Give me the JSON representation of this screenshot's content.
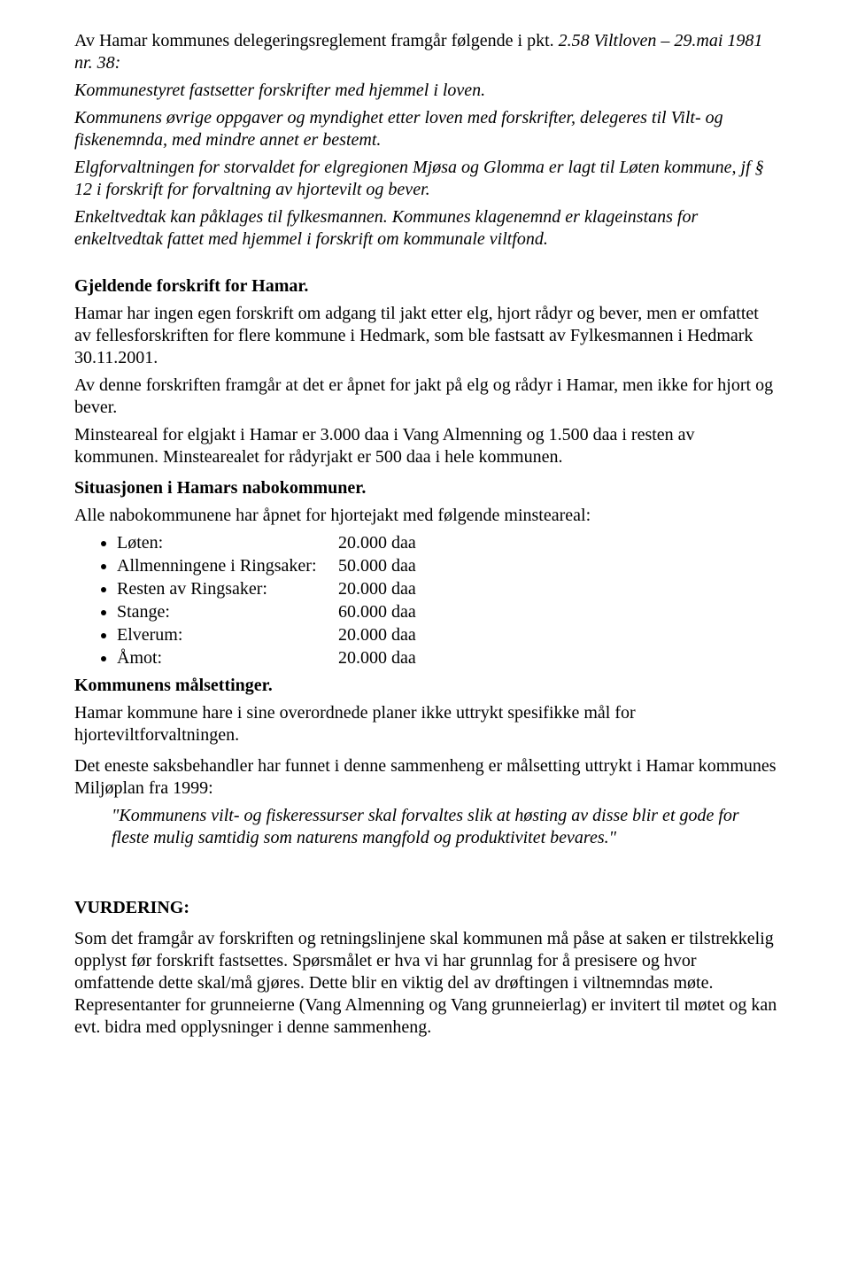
{
  "intro": {
    "p1_a": "Av Hamar kommunes delegeringsreglement framgår følgende i pkt. ",
    "p1_b": "2.58 Viltloven – 29.mai 1981 nr. 38:",
    "p2": "Kommunestyret fastsetter forskrifter med hjemmel i loven.",
    "p3": "Kommunens øvrige oppgaver og myndighet etter loven med forskrifter, delegeres til Vilt- og fiskenemnda, med mindre annet er bestemt.",
    "p4": "Elgforvaltningen for storvaldet for elgregionen Mjøsa og Glomma er lagt til Løten kommune, jf § 12 i forskrift for forvaltning av hjortevilt og bever.",
    "p5": "Enkeltvedtak kan påklages til fylkesmannen. Kommunes klagenemnd er klageinstans for enkeltvedtak fattet med hjemmel i forskrift om kommunale viltfond."
  },
  "gjeldende": {
    "heading": "Gjeldende forskrift for Hamar.",
    "p1": "Hamar har ingen egen forskrift om adgang til jakt etter elg, hjort rådyr og bever, men er omfattet av fellesforskriften for flere kommune i Hedmark, som ble fastsatt av Fylkesmannen i Hedmark 30.11.2001.",
    "p2": "Av denne forskriften framgår at det er åpnet for jakt på elg og rådyr i Hamar, men ikke for hjort og bever.",
    "p3": "Minsteareal for elgjakt i Hamar er 3.000 daa i Vang Almenning og 1.500 daa i resten av kommunen. Minstearealet for rådyrjakt er 500 daa i hele kommunen."
  },
  "situasjon": {
    "heading": "Situasjonen i Hamars nabokommuner.",
    "intro": "Alle nabokommunene har åpnet for hjortejakt med følgende minsteareal:",
    "rows": [
      {
        "label": "Løten:",
        "value": "20.000 daa"
      },
      {
        "label": "Allmenningene i Ringsaker:",
        "value": "50.000 daa"
      },
      {
        "label": "Resten av Ringsaker:",
        "value": "20.000 daa"
      },
      {
        "label": "Stange:",
        "value": "60.000 daa"
      },
      {
        "label": "Elverum:",
        "value": "20.000 daa"
      },
      {
        "label": "Åmot:",
        "value": "20.000 daa"
      }
    ]
  },
  "maal": {
    "heading": "Kommunens målsettinger.",
    "p1": "Hamar kommune hare i sine overordnede planer ikke uttrykt spesifikke mål for hjorteviltforvaltningen.",
    "p2": "Det eneste saksbehandler har funnet i denne sammenheng er målsetting uttrykt i Hamar kommunes Miljøplan fra 1999:",
    "quote": "\"Kommunens vilt- og fiskeressurser skal forvaltes slik at høsting av disse blir et gode for fleste mulig samtidig som naturens mangfold og produktivitet bevares.\""
  },
  "vurdering": {
    "heading": "VURDERING:",
    "p1": "Som det framgår av forskriften og retningslinjene skal kommunen må påse at saken er tilstrekkelig opplyst før forskrift fastsettes.  Spørsmålet er hva vi har grunnlag for å presisere og hvor omfattende dette skal/må gjøres. Dette blir en viktig del av drøftingen i viltnemndas møte. Representanter for grunneierne (Vang Almenning og Vang grunneierlag) er invitert til møtet og kan evt. bidra med opplysninger i denne sammenheng."
  }
}
